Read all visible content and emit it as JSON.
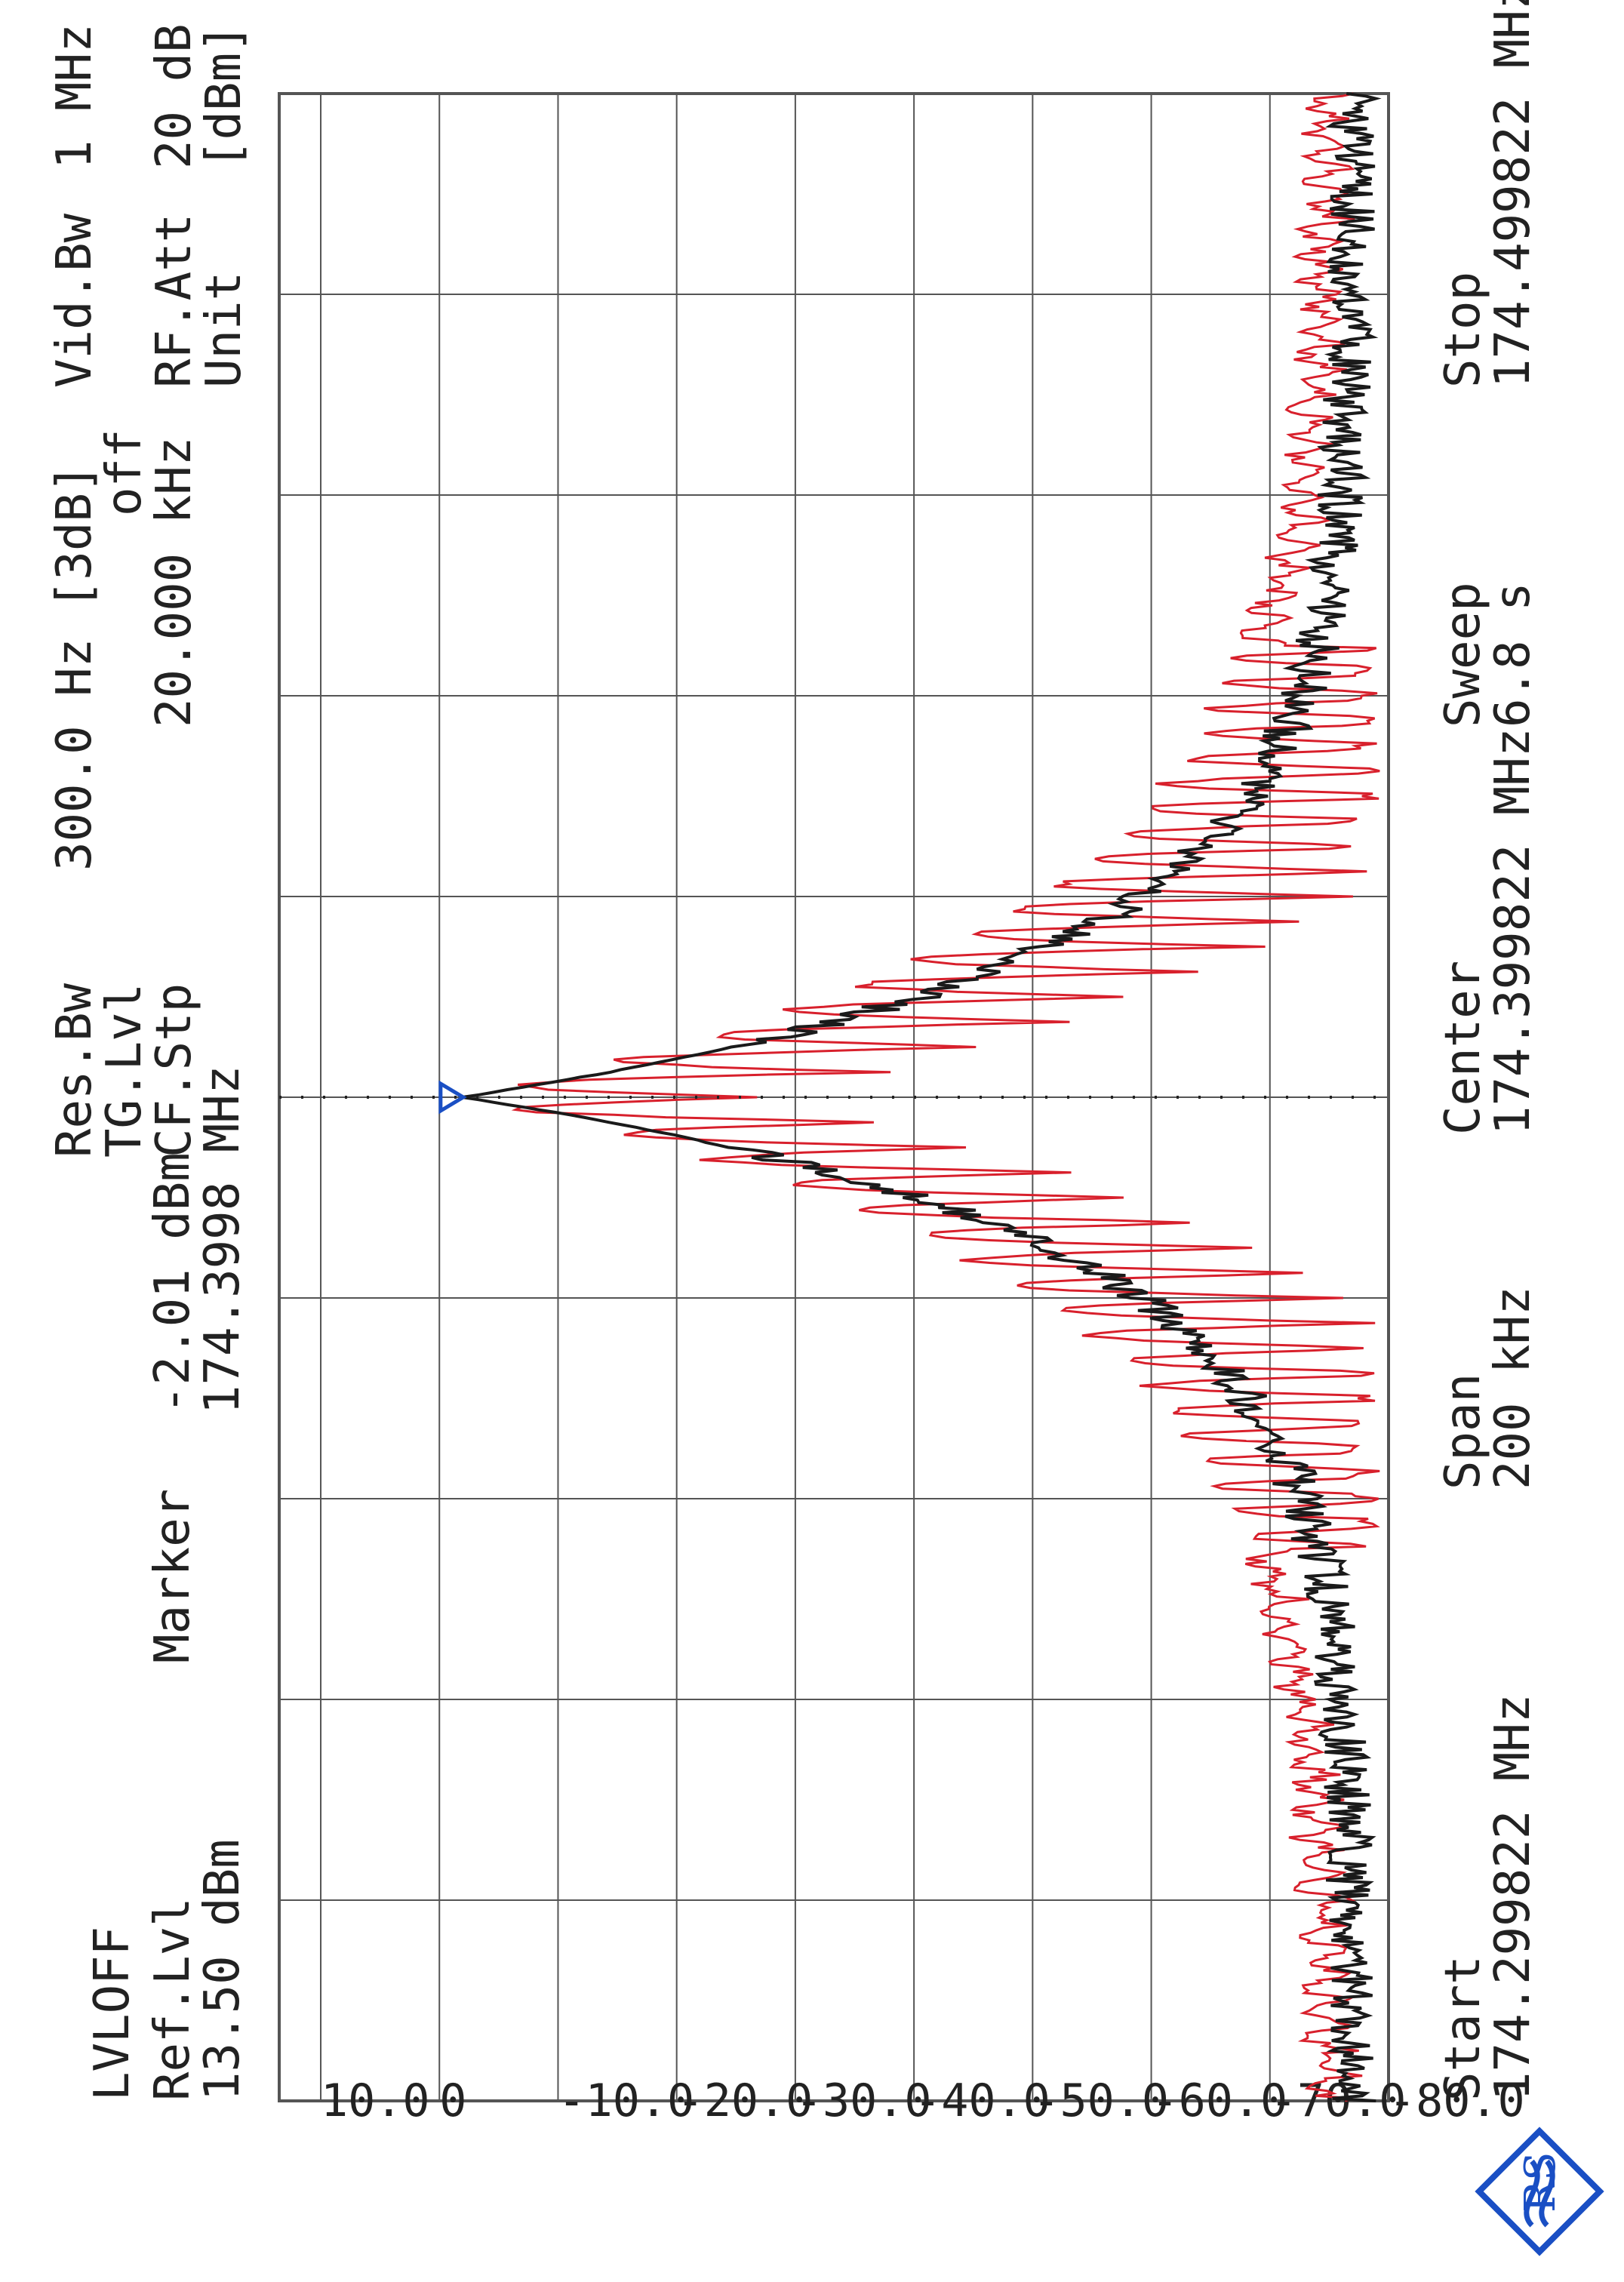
{
  "header": {
    "mode": "LVLOFF",
    "ref_level": {
      "label": "Ref.Lvl",
      "value": "13.50 dBm"
    },
    "marker": {
      "label": "Marker",
      "level": "-2.01 dBm",
      "freq": "174.3998 MHz"
    },
    "settings_labels": [
      "Res.Bw",
      "TG.Lvl",
      "CF.Stp"
    ],
    "settings_values": [
      "300.0 Hz [3dB]",
      "off",
      "20.000 kHz"
    ],
    "settings2_labels": [
      "Vid.Bw",
      "RF.Att",
      "Unit"
    ],
    "settings2_values": [
      "1 MHz",
      "20 dB",
      "[dBm]"
    ]
  },
  "footer": {
    "start": {
      "label": "Start",
      "value": "174.299822 MHz"
    },
    "span": {
      "label": "Span",
      "value": "200 kHz"
    },
    "center": {
      "label": "Center",
      "value": "174.399822 MHz"
    },
    "sweep": {
      "label": "Sweep",
      "value": "6.8 s"
    },
    "stop": {
      "label": "Stop",
      "value": "174.499822 MHz"
    }
  },
  "colors": {
    "trace1": "#d8202c",
    "trace2": "#1a1a1a",
    "marker": "#1a4fc4",
    "grid": "#555555",
    "logo": "#1a4fc4"
  },
  "logo_icon": "rohde-schwarz-logo",
  "chart_data": {
    "type": "line",
    "xlabel": "",
    "ylabel": "",
    "x_range_khz": [
      -100,
      100
    ],
    "ylim": [
      -80,
      13.5
    ],
    "yticks": [
      10,
      0,
      -10,
      -20,
      -30,
      -40,
      -50,
      -60,
      -70,
      -80
    ],
    "ytick_labels": [
      "10.0",
      "0",
      "-10.0",
      "-20.0",
      "-30.0",
      "-40.0",
      "-50.0",
      "-60.0",
      "-70.0",
      "-80.0"
    ],
    "grid": true,
    "marker": {
      "x_khz": 0,
      "y": -2.01
    },
    "series": [
      {
        "color": "#1a1a1a",
        "style": "smooth peak",
        "x": [
          -100,
          -80,
          -60,
          -40,
          -30,
          -20,
          -15,
          -10,
          -5,
          -2,
          0,
          2,
          5,
          10,
          15,
          20,
          30,
          -40,
          40,
          60,
          80,
          100
        ],
        "y": [
          -77,
          -77,
          -76,
          -72,
          -68,
          -60,
          -50,
          -38,
          -20,
          -8,
          -2,
          -8,
          -20,
          -38,
          -50,
          -60,
          -68,
          -72,
          -72,
          -76,
          -77,
          -77
        ]
      },
      {
        "color": "#d8202c",
        "style": "sideband comb",
        "x": [
          -40,
          -35,
          -30,
          -25,
          -20,
          -15,
          -10,
          -5,
          -2,
          0,
          2,
          5,
          10,
          15,
          20,
          25,
          30,
          35,
          40
        ],
        "y": [
          -70,
          -64,
          -58,
          -50,
          -38,
          -30,
          -20,
          -12,
          -8,
          -2,
          -8,
          -12,
          -20,
          -30,
          -38,
          -50,
          -58,
          -64,
          -70
        ]
      }
    ]
  }
}
